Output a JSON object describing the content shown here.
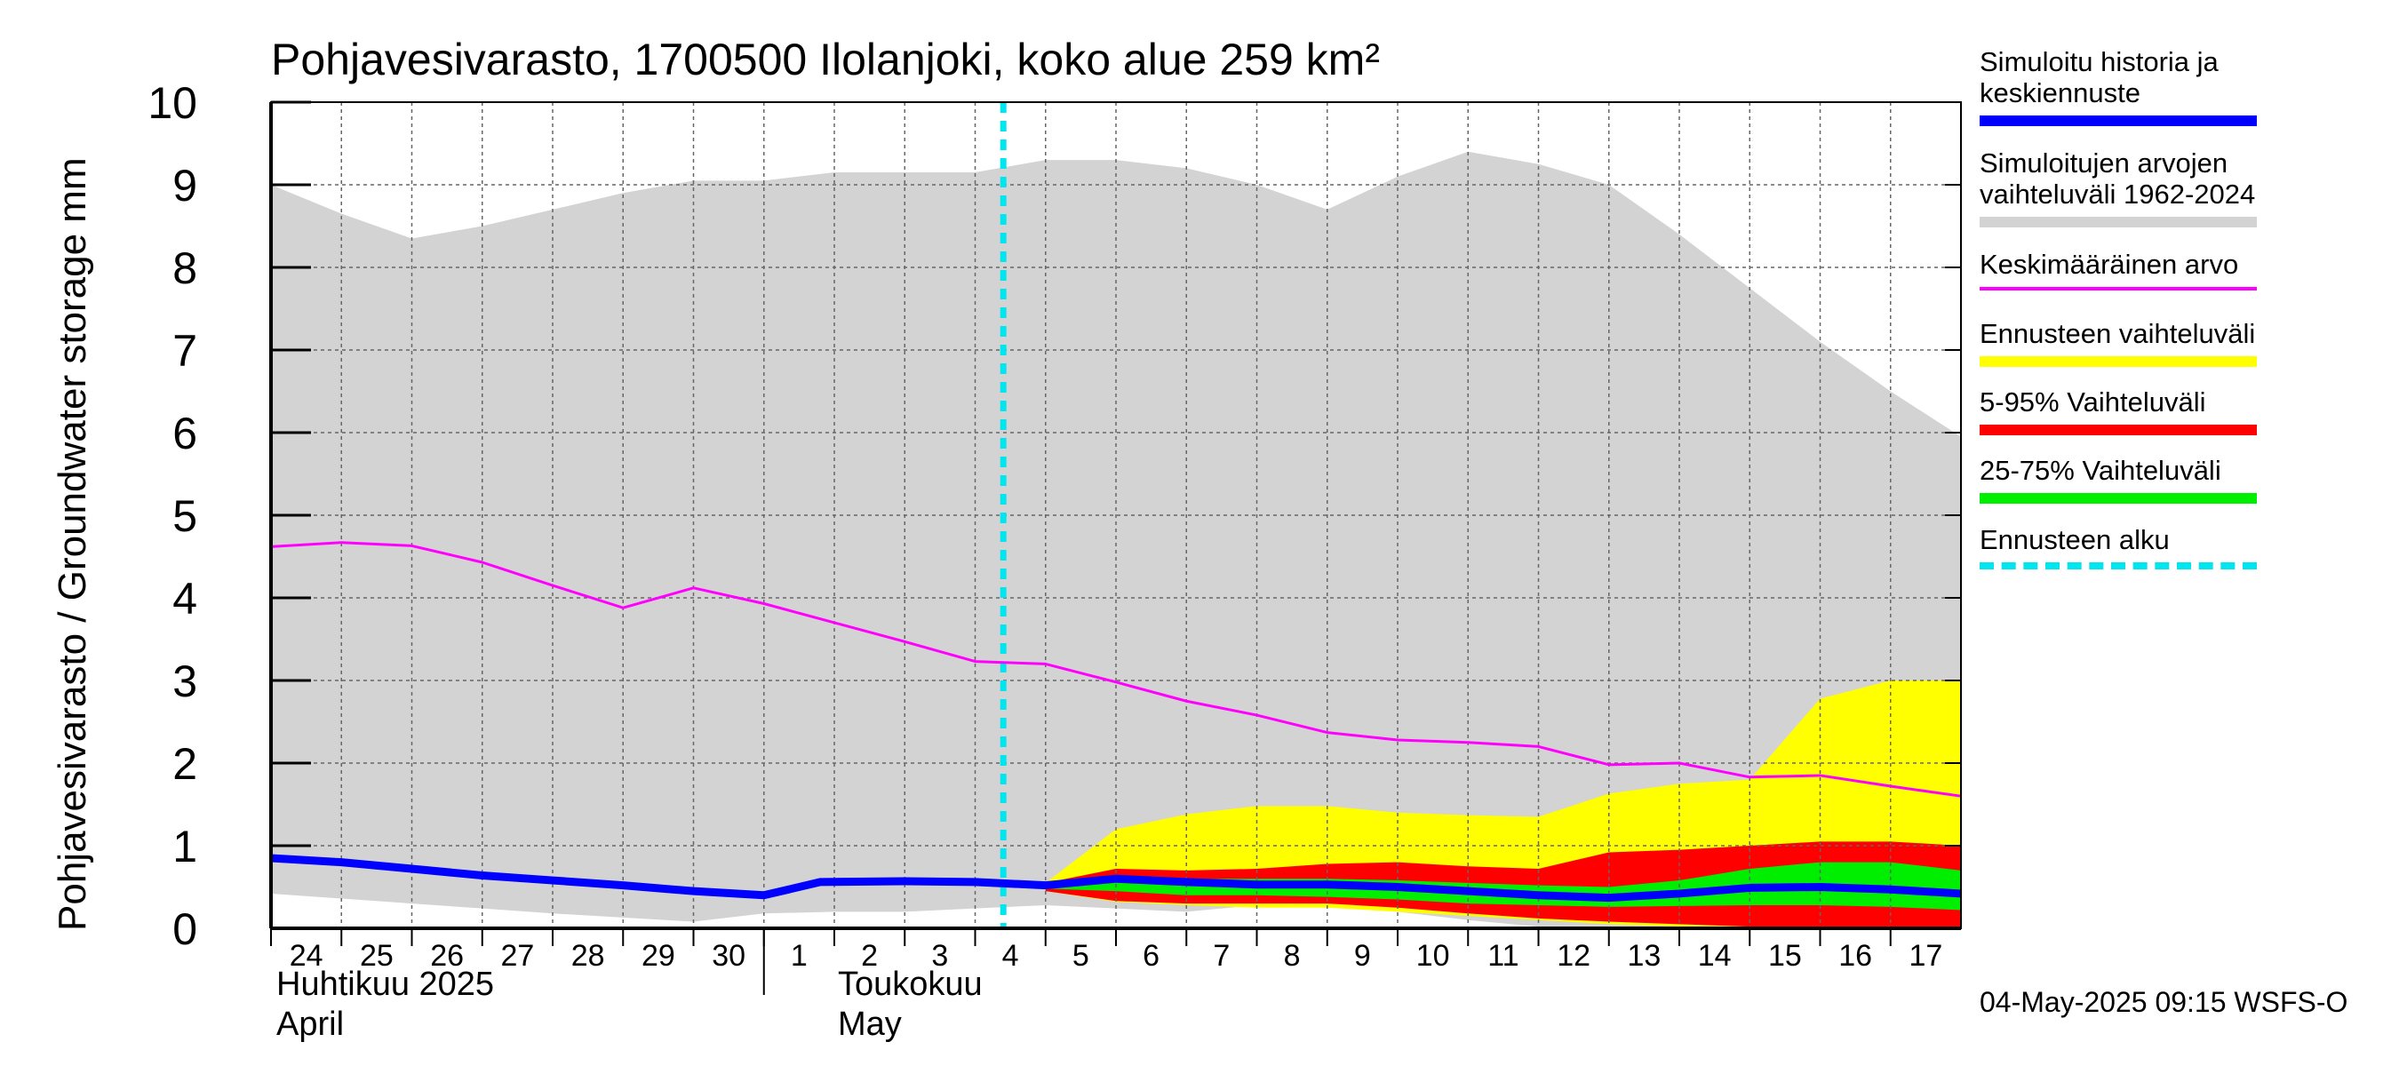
{
  "chart_data": {
    "type": "area",
    "title": "Pohjavesivarasto, 1700500 Ilolanjoki, koko alue 259 km²",
    "ylabel": "Pohjavesivarasto / Groundwater storage   mm",
    "ylim": [
      0,
      10
    ],
    "y_ticks": [
      "0",
      "1",
      "2",
      "3",
      "4",
      "5",
      "6",
      "7",
      "8",
      "9",
      "10"
    ],
    "x_tick_labels": [
      "24",
      "25",
      "26",
      "27",
      "28",
      "29",
      "30",
      "1",
      "2",
      "3",
      "4",
      "5",
      "6",
      "7",
      "8",
      "9",
      "10",
      "11",
      "12",
      "13",
      "14",
      "15",
      "16",
      "17"
    ],
    "month_labels": [
      {
        "fi": "Huhtikuu  2025",
        "en": "April"
      },
      {
        "fi": "Toukokuu",
        "en": "May"
      }
    ],
    "grid": true,
    "forecast_start_day": 10.4,
    "series": [
      {
        "name": "Simuloitujen arvojen vaihteluväli 1962-2024",
        "kind": "band",
        "color": "#d3d3d3",
        "x": [
          0,
          1,
          2,
          3,
          4,
          5,
          6,
          7,
          8,
          9,
          10,
          11,
          12,
          13,
          14,
          15,
          16,
          17,
          18,
          19,
          20,
          21,
          22,
          23,
          24
        ],
        "upper": [
          9.0,
          8.65,
          8.35,
          8.5,
          8.7,
          8.9,
          9.05,
          9.05,
          9.15,
          9.15,
          9.15,
          9.3,
          9.3,
          9.2,
          9.0,
          8.7,
          9.1,
          9.4,
          9.25,
          9.0,
          8.4,
          7.75,
          7.1,
          6.5,
          5.95
        ],
        "lower": [
          0.42,
          0.36,
          0.3,
          0.24,
          0.18,
          0.13,
          0.08,
          0.18,
          0.2,
          0.2,
          0.24,
          0.28,
          0.24,
          0.2,
          0.28,
          0.28,
          0.2,
          0.1,
          0.02,
          0.0,
          0.0,
          0.0,
          0.0,
          0.0,
          0.0
        ]
      },
      {
        "name": "Ennusteen vaihteluväli",
        "kind": "band",
        "color": "#ffff00",
        "x": [
          11,
          12,
          13,
          14,
          15,
          16,
          17,
          18,
          19,
          20,
          21,
          22,
          23,
          24
        ],
        "upper": [
          0.55,
          1.2,
          1.38,
          1.48,
          1.48,
          1.4,
          1.37,
          1.35,
          1.63,
          1.75,
          1.8,
          2.78,
          3.0,
          3.0
        ],
        "lower": [
          0.45,
          0.32,
          0.28,
          0.25,
          0.25,
          0.2,
          0.15,
          0.1,
          0.05,
          0.02,
          0.0,
          0.0,
          0.0,
          0.0
        ]
      },
      {
        "name": "5-95% Vaihteluväli",
        "kind": "band",
        "color": "#ff0000",
        "x": [
          11,
          12,
          13,
          14,
          15,
          16,
          17,
          18,
          19,
          20,
          21,
          22,
          23,
          24
        ],
        "upper": [
          0.55,
          0.72,
          0.7,
          0.72,
          0.78,
          0.8,
          0.75,
          0.72,
          0.92,
          0.95,
          1.0,
          1.05,
          1.05,
          1.0
        ],
        "lower": [
          0.45,
          0.33,
          0.3,
          0.3,
          0.3,
          0.25,
          0.18,
          0.12,
          0.08,
          0.05,
          0.02,
          0.02,
          0.0,
          0.0
        ]
      },
      {
        "name": "25-75% Vaihteluväli",
        "kind": "band",
        "color": "#00ee00",
        "x": [
          11,
          12,
          13,
          14,
          15,
          16,
          17,
          18,
          19,
          20,
          21,
          22,
          23,
          24
        ],
        "upper": [
          0.52,
          0.62,
          0.6,
          0.6,
          0.6,
          0.58,
          0.55,
          0.52,
          0.5,
          0.58,
          0.72,
          0.8,
          0.8,
          0.7
        ],
        "lower": [
          0.48,
          0.45,
          0.4,
          0.4,
          0.38,
          0.35,
          0.3,
          0.28,
          0.26,
          0.27,
          0.28,
          0.28,
          0.26,
          0.22
        ]
      },
      {
        "name": "Keskimääräinen arvo",
        "kind": "line",
        "color": "#ff00ff",
        "width": 3,
        "x": [
          0,
          1,
          2,
          3,
          4,
          5,
          6,
          7,
          8,
          9,
          10,
          11,
          12,
          13,
          14,
          15,
          16,
          17,
          18,
          19,
          20,
          21,
          22,
          23,
          24
        ],
        "values": [
          4.62,
          4.67,
          4.63,
          4.43,
          4.15,
          3.88,
          4.12,
          3.93,
          3.7,
          3.47,
          3.23,
          3.2,
          2.98,
          2.75,
          2.58,
          2.37,
          2.28,
          2.25,
          2.2,
          1.98,
          2.0,
          1.83,
          1.85,
          1.72,
          1.6
        ]
      },
      {
        "name": "Simuloitu historia ja keskiennuste",
        "kind": "line",
        "color": "#0000ff",
        "width": 9,
        "x": [
          0,
          1,
          2,
          3,
          4,
          5,
          6,
          7,
          7.8,
          9,
          10,
          11,
          12,
          13,
          14,
          15,
          16,
          17,
          18,
          19,
          20,
          21,
          22,
          23,
          24
        ],
        "values": [
          0.85,
          0.8,
          0.72,
          0.64,
          0.58,
          0.52,
          0.45,
          0.4,
          0.56,
          0.57,
          0.56,
          0.52,
          0.6,
          0.56,
          0.53,
          0.53,
          0.5,
          0.45,
          0.4,
          0.37,
          0.42,
          0.49,
          0.5,
          0.47,
          0.42
        ]
      }
    ]
  },
  "legend": {
    "items": [
      {
        "label": "Simuloitu historia ja\nkeskiennuste",
        "color": "#0000ff",
        "style": "thick"
      },
      {
        "label": "Simuloitujen arvojen\nvaihteluväli 1962-2024",
        "color": "#d3d3d3",
        "style": "thick"
      },
      {
        "label": "Keskimääräinen arvo",
        "color": "#ff00ff",
        "style": "thin"
      },
      {
        "label": "Ennusteen vaihteluväli",
        "color": "#ffff00",
        "style": "thick"
      },
      {
        "label": "5-95% Vaihteluväli",
        "color": "#ff0000",
        "style": "thick"
      },
      {
        "label": "25-75% Vaihteluväli",
        "color": "#00ee00",
        "style": "thick"
      },
      {
        "label": "Ennusteen alku",
        "color": "#00e5ee",
        "style": "dashed"
      }
    ]
  },
  "footer": "04-May-2025 09:15 WSFS-O"
}
